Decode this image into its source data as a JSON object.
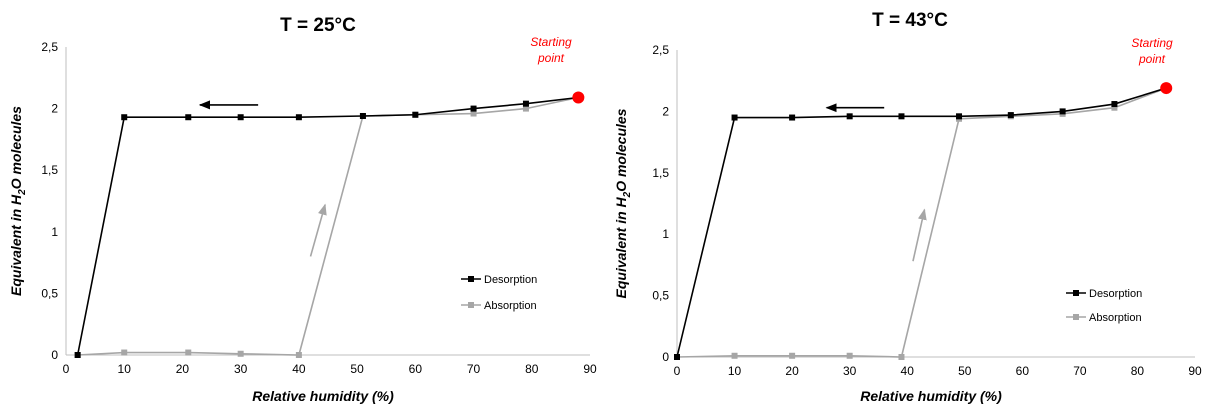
{
  "chart_data": [
    {
      "type": "line",
      "title": "T = 25°C",
      "xlabel": "Relative humidity (%)",
      "ylabel_parts": [
        "Equivalent in H",
        "2",
        "O molecules"
      ],
      "xlim": [
        0,
        90
      ],
      "ylim": [
        0,
        2.5
      ],
      "xticks": [
        "0",
        "10",
        "20",
        "30",
        "40",
        "50",
        "60",
        "70",
        "80",
        "90"
      ],
      "yticks": [
        "0",
        "0,5",
        "1",
        "1,5",
        "2",
        "2,5"
      ],
      "grid": false,
      "legend_position": "right",
      "series": [
        {
          "name": "Desorption",
          "color": "#000000",
          "x": [
            88,
            79,
            70,
            60,
            51,
            40,
            30,
            21,
            10,
            2
          ],
          "y": [
            2.09,
            2.04,
            2.0,
            1.95,
            1.94,
            1.93,
            1.93,
            1.93,
            1.93,
            0.0
          ]
        },
        {
          "name": "Absorption",
          "color": "#a6a6a6",
          "x": [
            2,
            10,
            21,
            30,
            40,
            51,
            60,
            70,
            79,
            88
          ],
          "y": [
            0.0,
            0.02,
            0.02,
            0.01,
            0.0,
            1.94,
            1.95,
            1.96,
            2.0,
            2.09
          ]
        }
      ],
      "starting_point": {
        "label_lines": [
          "Starting",
          "point"
        ],
        "x": 88,
        "y": 2.09,
        "color": "#ff0000"
      },
      "arrows": [
        {
          "from": [
            33,
            2.03
          ],
          "to": [
            23,
            2.03
          ],
          "color": "#000000"
        },
        {
          "from": [
            42,
            0.8
          ],
          "to": [
            44.5,
            1.22
          ],
          "color": "#a6a6a6"
        }
      ]
    },
    {
      "type": "line",
      "title": "T = 43°C",
      "xlabel": "Relative humidity (%)",
      "ylabel_parts": [
        "Equivalent in H",
        "2",
        "O molecules"
      ],
      "xlim": [
        0,
        90
      ],
      "ylim": [
        0,
        2.5
      ],
      "xticks": [
        "0",
        "10",
        "20",
        "30",
        "40",
        "50",
        "60",
        "70",
        "80",
        "90"
      ],
      "yticks": [
        "0",
        "0,5",
        "1",
        "1,5",
        "2",
        "2,5"
      ],
      "grid": false,
      "legend_position": "right",
      "series": [
        {
          "name": "Desorption",
          "color": "#000000",
          "x": [
            85,
            76,
            67,
            58,
            49,
            39,
            30,
            20,
            10,
            0
          ],
          "y": [
            2.19,
            2.06,
            2.0,
            1.97,
            1.96,
            1.96,
            1.96,
            1.95,
            1.95,
            0.0
          ]
        },
        {
          "name": "Absorption",
          "color": "#a6a6a6",
          "x": [
            0,
            10,
            20,
            30,
            39,
            49,
            58,
            67,
            76,
            85
          ],
          "y": [
            0.0,
            0.01,
            0.01,
            0.01,
            0.0,
            1.94,
            1.96,
            1.98,
            2.03,
            2.19
          ]
        }
      ],
      "starting_point": {
        "label_lines": [
          "Starting",
          "point"
        ],
        "x": 85,
        "y": 2.19,
        "color": "#ff0000"
      },
      "arrows": [
        {
          "from": [
            36,
            2.03
          ],
          "to": [
            26,
            2.03
          ],
          "color": "#000000"
        },
        {
          "from": [
            41,
            0.78
          ],
          "to": [
            43,
            1.2
          ],
          "color": "#a6a6a6"
        }
      ]
    }
  ]
}
